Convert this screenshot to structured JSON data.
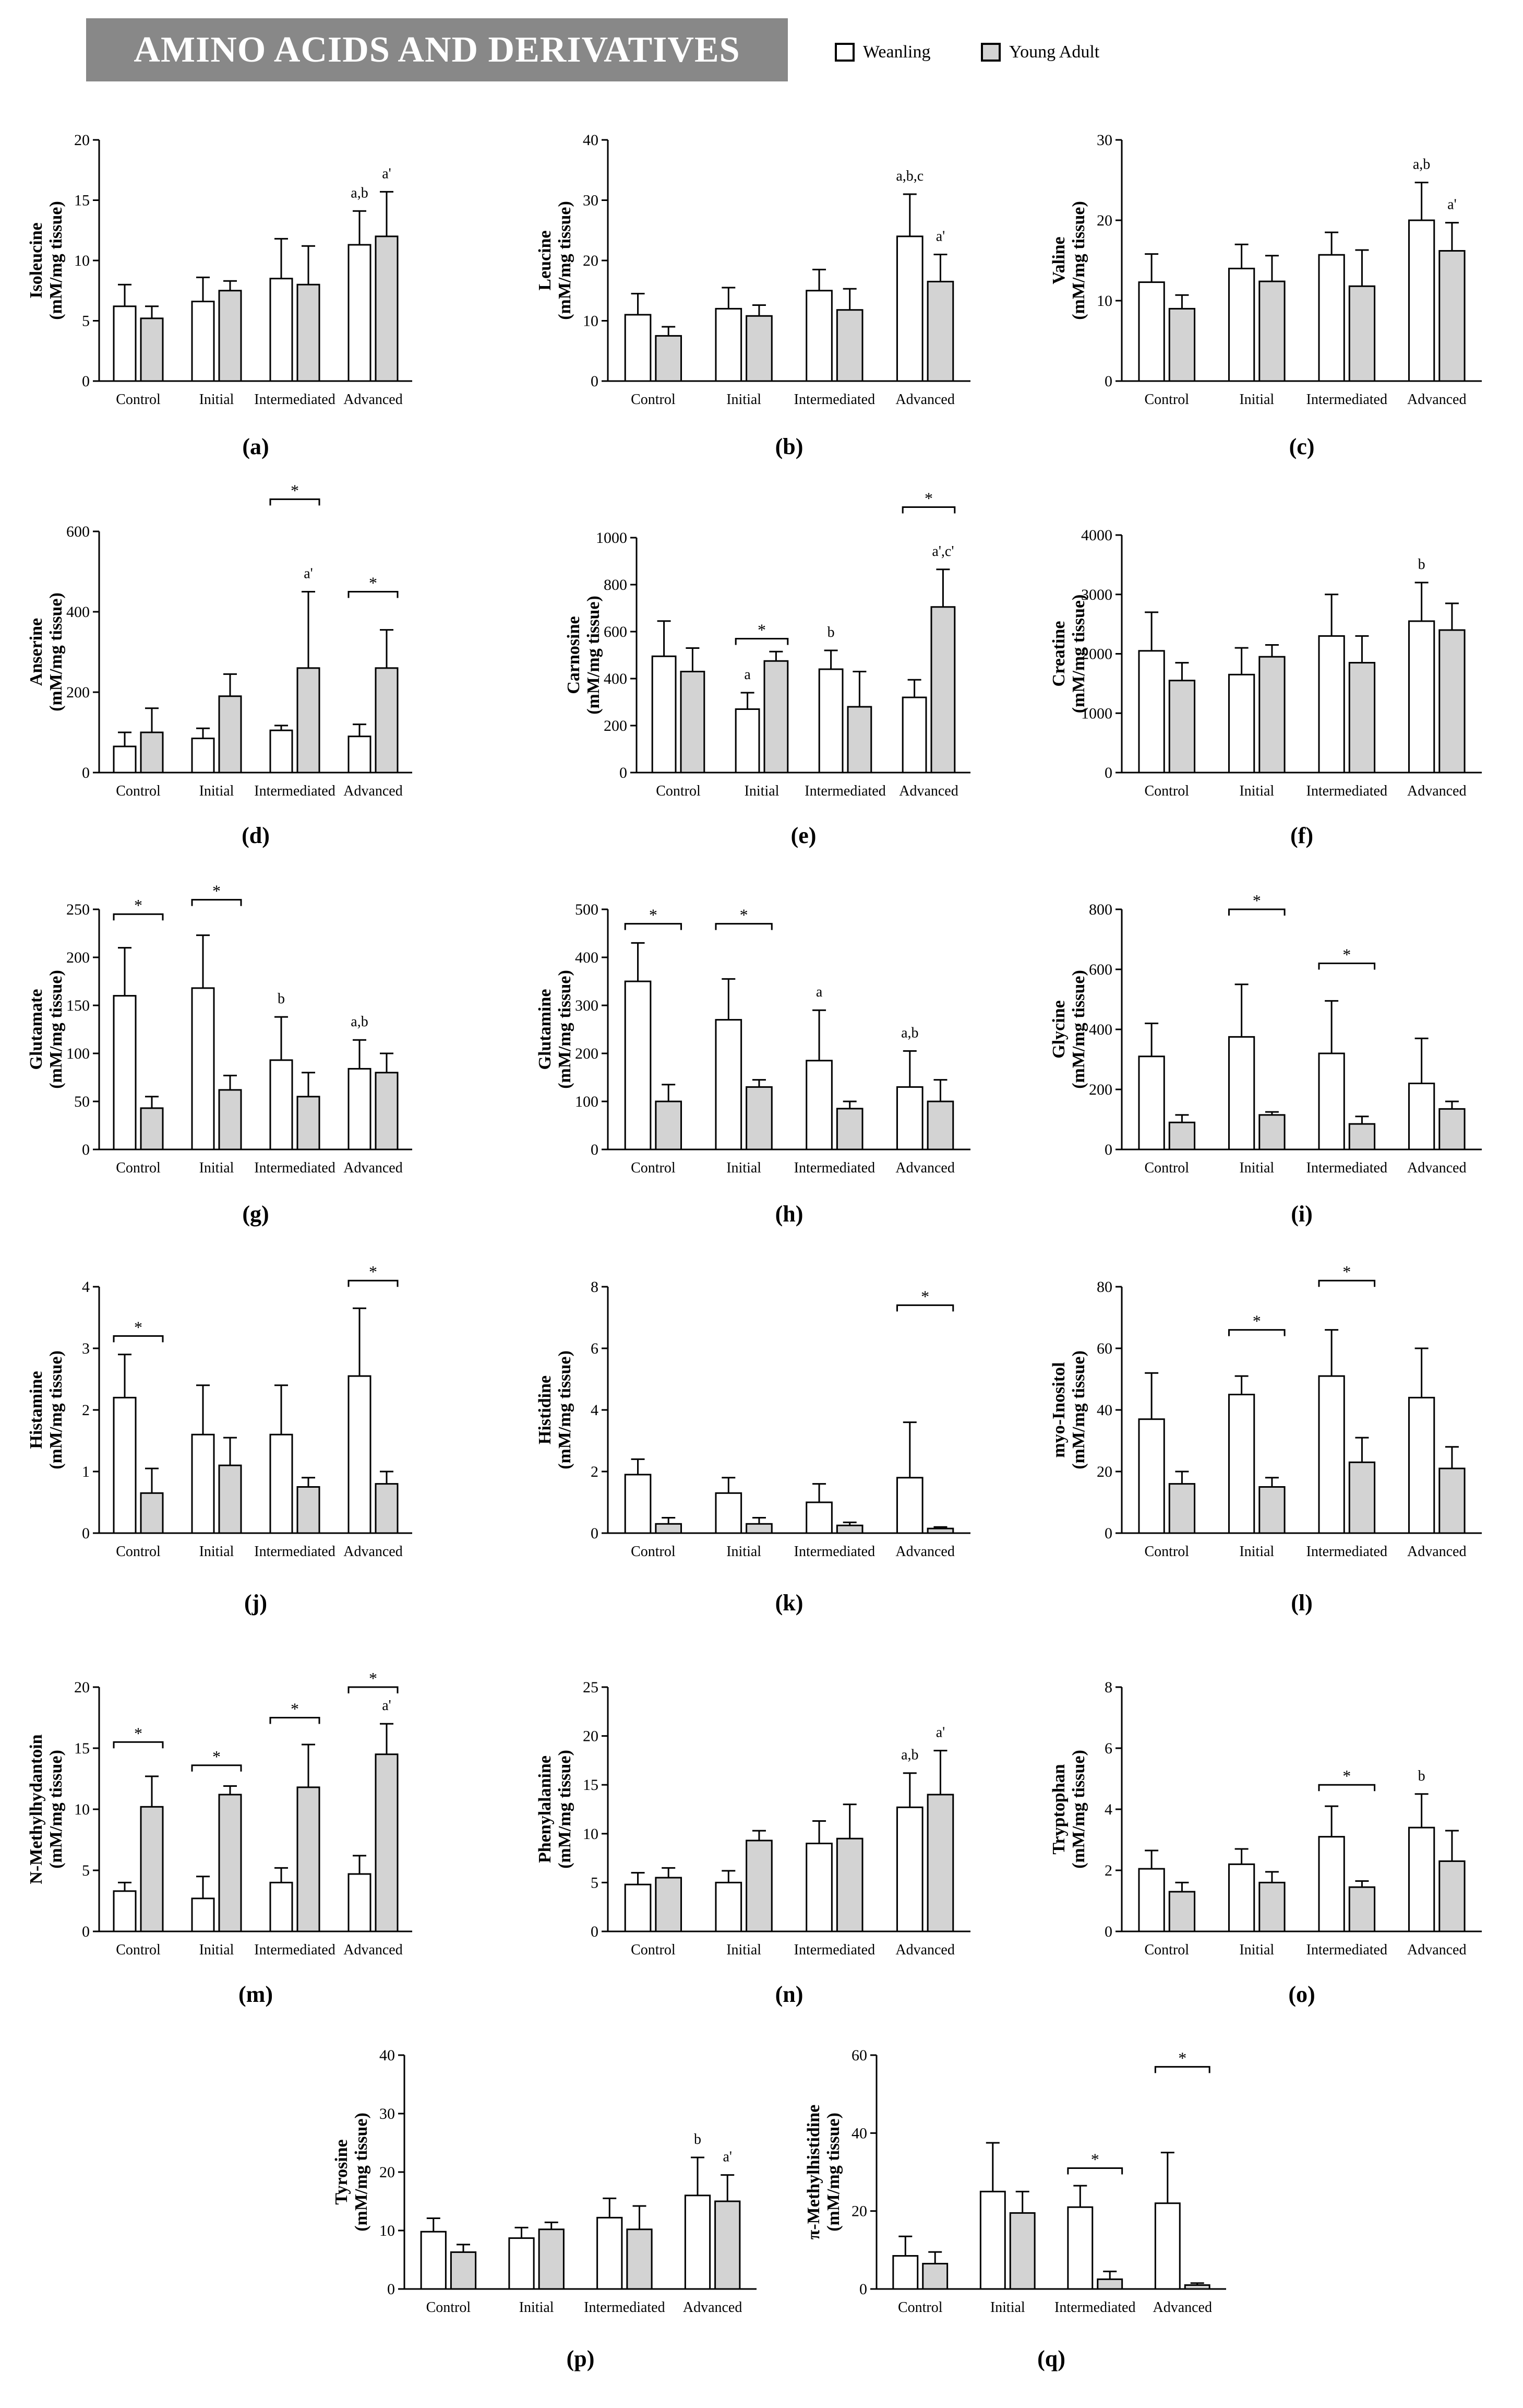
{
  "header": {
    "title": "AMINO ACIDS AND DERIVATIVES"
  },
  "legend": [
    {
      "label": "Weanling",
      "color": "#ffffff"
    },
    {
      "label": "Young Adult",
      "color": "#d3d3d3"
    }
  ],
  "colors": {
    "weanling": "#ffffff",
    "young_adult": "#d3d3d3",
    "stroke": "#000000"
  },
  "chart_data": [
    {
      "panel": "(a)",
      "type": "bar",
      "ylabel1": "Isoleucine",
      "ylabel2": "(mM/mg tissue)",
      "ylim": [
        0,
        20
      ],
      "yticks": [
        0,
        5,
        10,
        15,
        20
      ],
      "categories": [
        "Control",
        "Initial",
        "Intermediated",
        "Advanced"
      ],
      "series": [
        {
          "name": "Weanling",
          "values": [
            6.2,
            6.6,
            8.5,
            11.3
          ],
          "sd": [
            1.8,
            2.0,
            3.3,
            2.8
          ]
        },
        {
          "name": "Young Adult",
          "values": [
            5.2,
            7.5,
            8.0,
            12.0
          ],
          "sd": [
            1.0,
            0.8,
            3.2,
            3.7
          ]
        }
      ],
      "annotations": [
        {
          "group": 3,
          "series": 0,
          "text": "a,b"
        },
        {
          "group": 3,
          "series": 1,
          "text": "a'"
        }
      ],
      "significance": []
    },
    {
      "panel": "(b)",
      "type": "bar",
      "ylabel1": "Leucine",
      "ylabel2": "(mM/mg tissue)",
      "ylim": [
        0,
        40
      ],
      "yticks": [
        0,
        10,
        20,
        30,
        40
      ],
      "categories": [
        "Control",
        "Initial",
        "Intermediated",
        "Advanced"
      ],
      "series": [
        {
          "name": "Weanling",
          "values": [
            11.0,
            12.0,
            15.0,
            24.0
          ],
          "sd": [
            3.5,
            3.5,
            3.5,
            7.0
          ]
        },
        {
          "name": "Young Adult",
          "values": [
            7.5,
            10.8,
            11.8,
            16.5
          ],
          "sd": [
            1.5,
            1.8,
            3.5,
            4.5
          ]
        }
      ],
      "annotations": [
        {
          "group": 3,
          "series": 0,
          "text": "a,b,c"
        },
        {
          "group": 3,
          "series": 1,
          "text": "a'"
        }
      ],
      "significance": []
    },
    {
      "panel": "(c)",
      "type": "bar",
      "ylabel1": "Valine",
      "ylabel2": "(mM/mg tissue)",
      "ylim": [
        0,
        30
      ],
      "yticks": [
        0,
        10,
        20,
        30
      ],
      "categories": [
        "Control",
        "Initial",
        "Intermediated",
        "Advanced"
      ],
      "series": [
        {
          "name": "Weanling",
          "values": [
            12.3,
            14.0,
            15.7,
            20.0
          ],
          "sd": [
            3.5,
            3.0,
            2.8,
            4.7
          ]
        },
        {
          "name": "Young Adult",
          "values": [
            9.0,
            12.4,
            11.8,
            16.2
          ],
          "sd": [
            1.7,
            3.2,
            4.5,
            3.5
          ]
        }
      ],
      "annotations": [
        {
          "group": 3,
          "series": 0,
          "text": "a,b"
        },
        {
          "group": 3,
          "series": 1,
          "text": "a'"
        }
      ],
      "significance": []
    },
    {
      "panel": "(d)",
      "type": "bar",
      "ylabel1": "Anserine",
      "ylabel2": "(mM/mg tissue)",
      "ylim": [
        0,
        600
      ],
      "yticks": [
        0,
        200,
        400,
        600
      ],
      "categories": [
        "Control",
        "Initial",
        "Intermediated",
        "Advanced"
      ],
      "series": [
        {
          "name": "Weanling",
          "values": [
            65,
            85,
            105,
            90
          ],
          "sd": [
            35,
            25,
            12,
            30
          ]
        },
        {
          "name": "Young Adult",
          "values": [
            100,
            190,
            260,
            260
          ],
          "sd": [
            60,
            55,
            190,
            95
          ]
        }
      ],
      "annotations": [
        {
          "group": 2,
          "series": 1,
          "text": "a'"
        }
      ],
      "significance": [
        {
          "group": 2,
          "y": 680
        },
        {
          "group": 3,
          "y": 450
        }
      ]
    },
    {
      "panel": "(e)",
      "type": "bar",
      "ylabel1": "Carnosine",
      "ylabel2": "(mM/mg tissue)",
      "ylim": [
        0,
        1000
      ],
      "yticks": [
        0,
        200,
        400,
        600,
        800,
        1000
      ],
      "categories": [
        "Control",
        "Initial",
        "Intermediated",
        "Advanced"
      ],
      "series": [
        {
          "name": "Weanling",
          "values": [
            495,
            270,
            440,
            320
          ],
          "sd": [
            150,
            70,
            80,
            75
          ]
        },
        {
          "name": "Young Adult",
          "values": [
            430,
            475,
            280,
            705
          ],
          "sd": [
            100,
            40,
            150,
            160
          ]
        }
      ],
      "annotations": [
        {
          "group": 1,
          "series": 0,
          "text": "a"
        },
        {
          "group": 2,
          "series": 0,
          "text": "b"
        },
        {
          "group": 3,
          "series": 1,
          "text": "a',c'"
        }
      ],
      "significance": [
        {
          "group": 1,
          "y": 570
        },
        {
          "group": 3,
          "y": 1130
        }
      ]
    },
    {
      "panel": "(f)",
      "type": "bar",
      "ylabel1": "Creatine",
      "ylabel2": "(mM/mg tissue)",
      "ylim": [
        0,
        4000
      ],
      "yticks": [
        0,
        1000,
        2000,
        3000,
        4000
      ],
      "categories": [
        "Control",
        "Initial",
        "Intermediated",
        "Advanced"
      ],
      "series": [
        {
          "name": "Weanling",
          "values": [
            2050,
            1650,
            2300,
            2550
          ],
          "sd": [
            650,
            450,
            700,
            650
          ]
        },
        {
          "name": "Young Adult",
          "values": [
            1550,
            1950,
            1850,
            2400
          ],
          "sd": [
            300,
            200,
            450,
            450
          ]
        }
      ],
      "annotations": [
        {
          "group": 3,
          "series": 0,
          "text": "b"
        }
      ],
      "significance": []
    },
    {
      "panel": "(g)",
      "type": "bar",
      "ylabel1": "Glutamate",
      "ylabel2": "(mM/mg tissue)",
      "ylim": [
        0,
        250
      ],
      "yticks": [
        0,
        50,
        100,
        150,
        200,
        250
      ],
      "categories": [
        "Control",
        "Initial",
        "Intermediated",
        "Advanced"
      ],
      "series": [
        {
          "name": "Weanling",
          "values": [
            160,
            168,
            93,
            84
          ],
          "sd": [
            50,
            55,
            45,
            30
          ]
        },
        {
          "name": "Young Adult",
          "values": [
            43,
            62,
            55,
            80
          ],
          "sd": [
            12,
            15,
            25,
            20
          ]
        }
      ],
      "annotations": [
        {
          "group": 2,
          "series": 0,
          "text": "b"
        },
        {
          "group": 3,
          "series": 0,
          "text": "a,b"
        }
      ],
      "significance": [
        {
          "group": 0,
          "y": 245
        },
        {
          "group": 1,
          "y": 260
        }
      ]
    },
    {
      "panel": "(h)",
      "type": "bar",
      "ylabel1": "Glutamine",
      "ylabel2": "(mM/mg tissue)",
      "ylim": [
        0,
        500
      ],
      "yticks": [
        0,
        100,
        200,
        300,
        400,
        500
      ],
      "categories": [
        "Control",
        "Initial",
        "Intermediated",
        "Advanced"
      ],
      "series": [
        {
          "name": "Weanling",
          "values": [
            350,
            270,
            185,
            130
          ],
          "sd": [
            80,
            85,
            105,
            75
          ]
        },
        {
          "name": "Young Adult",
          "values": [
            100,
            130,
            85,
            100
          ],
          "sd": [
            35,
            15,
            15,
            45
          ]
        }
      ],
      "annotations": [
        {
          "group": 1,
          "series": 0,
          "text": ""
        },
        {
          "group": 2,
          "series": 0,
          "text": "a"
        },
        {
          "group": 3,
          "series": 0,
          "text": "a,b"
        }
      ],
      "significance": [
        {
          "group": 0,
          "y": 470
        },
        {
          "group": 1,
          "y": 470
        }
      ]
    },
    {
      "panel": "(i)",
      "type": "bar",
      "ylabel1": "Glycine",
      "ylabel2": "(mM/mg tissue)",
      "ylim": [
        0,
        800
      ],
      "yticks": [
        0,
        200,
        400,
        600,
        800
      ],
      "categories": [
        "Control",
        "Initial",
        "Intermediated",
        "Advanced"
      ],
      "series": [
        {
          "name": "Weanling",
          "values": [
            310,
            375,
            320,
            220
          ],
          "sd": [
            110,
            175,
            175,
            150
          ]
        },
        {
          "name": "Young Adult",
          "values": [
            90,
            115,
            85,
            135
          ],
          "sd": [
            25,
            10,
            25,
            25
          ]
        }
      ],
      "annotations": [],
      "significance": [
        {
          "group": 1,
          "y": 800
        },
        {
          "group": 2,
          "y": 620
        }
      ]
    },
    {
      "panel": "(j)",
      "type": "bar",
      "ylabel1": "Histamine",
      "ylabel2": "(mM/mg tissue)",
      "ylim": [
        0,
        4
      ],
      "yticks": [
        0,
        1,
        2,
        3,
        4
      ],
      "categories": [
        "Control",
        "Initial",
        "Intermediated",
        "Advanced"
      ],
      "series": [
        {
          "name": "Weanling",
          "values": [
            2.2,
            1.6,
            1.6,
            2.55
          ],
          "sd": [
            0.7,
            0.8,
            0.8,
            1.1
          ]
        },
        {
          "name": "Young Adult",
          "values": [
            0.65,
            1.1,
            0.75,
            0.8
          ],
          "sd": [
            0.4,
            0.45,
            0.15,
            0.2
          ]
        }
      ],
      "annotations": [],
      "significance": [
        {
          "group": 0,
          "y": 3.2
        },
        {
          "group": 3,
          "y": 4.1
        }
      ]
    },
    {
      "panel": "(k)",
      "type": "bar",
      "ylabel1": "Histidine",
      "ylabel2": "(mM/mg tissue)",
      "ylim": [
        0,
        8
      ],
      "yticks": [
        0,
        2,
        4,
        6,
        8
      ],
      "categories": [
        "Control",
        "Initial",
        "Intermediated",
        "Advanced"
      ],
      "series": [
        {
          "name": "Weanling",
          "values": [
            1.9,
            1.3,
            1.0,
            1.8
          ],
          "sd": [
            0.5,
            0.5,
            0.6,
            1.8
          ]
        },
        {
          "name": "Young Adult",
          "values": [
            0.3,
            0.3,
            0.25,
            0.15
          ],
          "sd": [
            0.2,
            0.2,
            0.1,
            0.05
          ]
        }
      ],
      "annotations": [],
      "significance": [
        {
          "group": 3,
          "y": 7.4
        }
      ]
    },
    {
      "panel": "(l)",
      "type": "bar",
      "ylabel1": "myo-Inositol",
      "ylabel2": "(mM/mg tissue)",
      "ylim": [
        0,
        80
      ],
      "yticks": [
        0,
        20,
        40,
        60,
        80
      ],
      "categories": [
        "Control",
        "Initial",
        "Intermediated",
        "Advanced"
      ],
      "series": [
        {
          "name": "Weanling",
          "values": [
            37,
            45,
            51,
            44
          ],
          "sd": [
            15,
            6,
            15,
            16
          ]
        },
        {
          "name": "Young Adult",
          "values": [
            16,
            15,
            23,
            21
          ],
          "sd": [
            4,
            3,
            8,
            7
          ]
        }
      ],
      "annotations": [],
      "significance": [
        {
          "group": 1,
          "y": 66
        },
        {
          "group": 2,
          "y": 82
        }
      ]
    },
    {
      "panel": "(m)",
      "type": "bar",
      "ylabel1": "N-Methylhydantoin",
      "ylabel2": "(mM/mg tissue)",
      "ylim": [
        0,
        20
      ],
      "yticks": [
        0,
        5,
        10,
        15,
        20
      ],
      "categories": [
        "Control",
        "Initial",
        "Intermediated",
        "Advanced"
      ],
      "series": [
        {
          "name": "Weanling",
          "values": [
            3.3,
            2.7,
            4.0,
            4.7
          ],
          "sd": [
            0.7,
            1.8,
            1.2,
            1.5
          ]
        },
        {
          "name": "Young Adult",
          "values": [
            10.2,
            11.2,
            11.8,
            14.5
          ],
          "sd": [
            2.5,
            0.7,
            3.5,
            2.5
          ]
        }
      ],
      "annotations": [
        {
          "group": 3,
          "series": 1,
          "text": "a'"
        }
      ],
      "significance": [
        {
          "group": 0,
          "y": 15.5
        },
        {
          "group": 1,
          "y": 13.6
        },
        {
          "group": 2,
          "y": 17.5
        },
        {
          "group": 3,
          "y": 20.0
        }
      ]
    },
    {
      "panel": "(n)",
      "type": "bar",
      "ylabel1": "Phenylalanine",
      "ylabel2": "(mM/mg tissue)",
      "ylim": [
        0,
        25
      ],
      "yticks": [
        0,
        5,
        10,
        15,
        20,
        25
      ],
      "categories": [
        "Control",
        "Initial",
        "Intermediated",
        "Advanced"
      ],
      "series": [
        {
          "name": "Weanling",
          "values": [
            4.8,
            5.0,
            9.0,
            12.7
          ],
          "sd": [
            1.2,
            1.2,
            2.3,
            3.5
          ]
        },
        {
          "name": "Young Adult",
          "values": [
            5.5,
            9.3,
            9.5,
            14.0
          ],
          "sd": [
            1.0,
            1.0,
            3.5,
            4.5
          ]
        }
      ],
      "annotations": [
        {
          "group": 3,
          "series": 0,
          "text": "a,b"
        },
        {
          "group": 3,
          "series": 1,
          "text": "a'"
        }
      ],
      "significance": []
    },
    {
      "panel": "(o)",
      "type": "bar",
      "ylabel1": "Tryptophan",
      "ylabel2": "(mM/mg tissue)",
      "ylim": [
        0,
        8
      ],
      "yticks": [
        0,
        2,
        4,
        6,
        8
      ],
      "categories": [
        "Control",
        "Initial",
        "Intermediated",
        "Advanced"
      ],
      "series": [
        {
          "name": "Weanling",
          "values": [
            2.05,
            2.2,
            3.1,
            3.4
          ],
          "sd": [
            0.6,
            0.5,
            1.0,
            1.1
          ]
        },
        {
          "name": "Young Adult",
          "values": [
            1.3,
            1.6,
            1.45,
            2.3
          ],
          "sd": [
            0.3,
            0.35,
            0.2,
            1.0
          ]
        }
      ],
      "annotations": [
        {
          "group": 3,
          "series": 0,
          "text": "b"
        }
      ],
      "significance": [
        {
          "group": 2,
          "y": 4.8
        }
      ]
    },
    {
      "panel": "(p)",
      "type": "bar",
      "ylabel1": "Tyrosine",
      "ylabel2": "(mM/mg tissue)",
      "ylim": [
        0,
        40
      ],
      "yticks": [
        0,
        10,
        20,
        30,
        40
      ],
      "categories": [
        "Control",
        "Initial",
        "Intermediated",
        "Advanced"
      ],
      "series": [
        {
          "name": "Weanling",
          "values": [
            9.8,
            8.7,
            12.2,
            16.0
          ],
          "sd": [
            2.3,
            1.8,
            3.3,
            6.5
          ]
        },
        {
          "name": "Young Adult",
          "values": [
            6.3,
            10.2,
            10.2,
            15.0
          ],
          "sd": [
            1.3,
            1.2,
            4.0,
            4.5
          ]
        }
      ],
      "annotations": [
        {
          "group": 3,
          "series": 0,
          "text": "b"
        },
        {
          "group": 3,
          "series": 1,
          "text": "a'"
        }
      ],
      "significance": []
    },
    {
      "panel": "(q)",
      "type": "bar",
      "ylabel1": "π-Methylhistidine",
      "ylabel2": "(mM/mg tissue)",
      "ylim": [
        0,
        60
      ],
      "yticks": [
        0,
        20,
        40,
        60
      ],
      "categories": [
        "Control",
        "Initial",
        "Intermediated",
        "Advanced"
      ],
      "series": [
        {
          "name": "Weanling",
          "values": [
            8.5,
            25.0,
            21.0,
            22.0
          ],
          "sd": [
            5.0,
            12.5,
            5.5,
            13.0
          ]
        },
        {
          "name": "Young Adult",
          "values": [
            6.5,
            19.5,
            2.5,
            1.0
          ],
          "sd": [
            3.0,
            5.5,
            2.0,
            0.5
          ]
        }
      ],
      "annotations": [],
      "significance": [
        {
          "group": 2,
          "y": 31
        },
        {
          "group": 3,
          "y": 57
        }
      ]
    }
  ]
}
